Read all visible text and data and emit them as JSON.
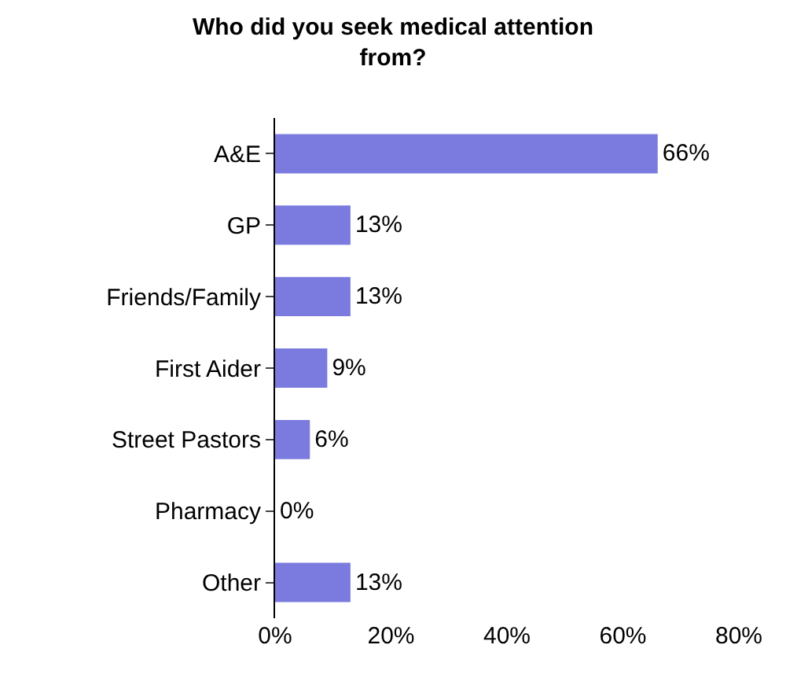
{
  "chart_data": {
    "type": "bar",
    "orientation": "horizontal",
    "title": "Who did you seek medical attention from?",
    "categories": [
      "A&E",
      "GP",
      "Friends/Family",
      "First Aider",
      "Street Pastors",
      "Pharmacy",
      "Other"
    ],
    "values": [
      66,
      13,
      13,
      9,
      6,
      0,
      13
    ],
    "value_labels": [
      "66%",
      "13%",
      "13%",
      "9%",
      "6%",
      "0%",
      "13%"
    ],
    "color": "#7b7bdf",
    "xlim": [
      0,
      80
    ],
    "xticks": [
      {
        "value": 0,
        "label": "0%"
      },
      {
        "value": 20,
        "label": "20%"
      },
      {
        "value": 40,
        "label": "40%"
      },
      {
        "value": 60,
        "label": "60%"
      },
      {
        "value": 80,
        "label": "80%"
      }
    ],
    "legend": false
  }
}
